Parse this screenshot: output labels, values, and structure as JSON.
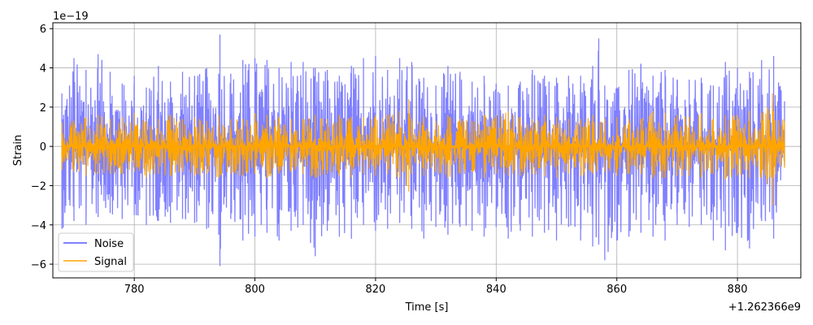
{
  "chart_data": {
    "type": "line",
    "title": "",
    "xlabel": "Time [s]",
    "ylabel": "Strain",
    "x_offset_label": "+1.262366e9",
    "y_scale_label": "1e−19",
    "xlim": [
      766.5,
      890.5
    ],
    "ylim": [
      -6.7,
      6.3
    ],
    "x_ticks": [
      780,
      800,
      820,
      840,
      860,
      880
    ],
    "x_tick_labels": [
      "780",
      "800",
      "820",
      "840",
      "860",
      "880"
    ],
    "y_ticks": [
      -6,
      -4,
      -2,
      0,
      2,
      4,
      6
    ],
    "y_tick_labels": [
      "−6",
      "−4",
      "−2",
      "0",
      "2",
      "4",
      "6"
    ],
    "grid": true,
    "legend_position": "lower-left",
    "series": [
      {
        "name": "Noise",
        "color": "#8080ff",
        "x": [
          768,
          770,
          772,
          774,
          776,
          778,
          780,
          782,
          784,
          786,
          788,
          790,
          792,
          794,
          794.2,
          796,
          798,
          800,
          802,
          804,
          806,
          808,
          810,
          812,
          814,
          816,
          818,
          820,
          822,
          824,
          826,
          828,
          830,
          832,
          834,
          836,
          838,
          840,
          842,
          844,
          846,
          848,
          850,
          852,
          854,
          856,
          857,
          858,
          860,
          862,
          864,
          866,
          868,
          870,
          872,
          874,
          876,
          878,
          880,
          882,
          884,
          886,
          887.8
        ],
        "y_max": [
          2.7,
          4.5,
          3.9,
          4.7,
          3.8,
          3.2,
          3.6,
          3.0,
          4.1,
          3.3,
          3.8,
          3.6,
          4.0,
          3.7,
          5.7,
          3.7,
          4.4,
          4.5,
          4.4,
          4.0,
          4.3,
          4.3,
          4.0,
          3.9,
          3.6,
          4.1,
          4.5,
          4.6,
          3.9,
          4.5,
          4.3,
          3.5,
          3.1,
          4.1,
          3.8,
          3.3,
          3.6,
          3.2,
          3.1,
          3.3,
          3.9,
          3.6,
          3.5,
          3.6,
          3.6,
          4.1,
          5.5,
          3.1,
          3.0,
          3.9,
          4.2,
          3.6,
          3.9,
          3.4,
          3.4,
          3.5,
          3.1,
          4.3,
          4.0,
          3.8,
          4.4,
          4.6,
          2.3
        ],
        "y_min": [
          -4.2,
          -3.8,
          -4.0,
          -3.6,
          -3.4,
          -3.7,
          -3.5,
          -4.0,
          -3.8,
          -3.9,
          -3.7,
          -3.9,
          -4.2,
          -4.5,
          -6.1,
          -3.7,
          -4.8,
          -4.6,
          -4.4,
          -4.8,
          -4.3,
          -4.0,
          -5.6,
          -4.3,
          -4.6,
          -4.7,
          -4.0,
          -4.3,
          -4.2,
          -3.9,
          -4.2,
          -4.7,
          -4.1,
          -4.5,
          -4.1,
          -4.3,
          -4.6,
          -4.1,
          -4.7,
          -4.3,
          -4.6,
          -4.4,
          -4.8,
          -4.1,
          -4.8,
          -5.1,
          -5.0,
          -5.8,
          -4.8,
          -4.6,
          -4.4,
          -4.6,
          -4.8,
          -4.0,
          -4.1,
          -4.0,
          -4.8,
          -5.3,
          -4.4,
          -5.2,
          -3.8,
          -4.7,
          -1.0
        ]
      },
      {
        "name": "Signal",
        "color": "#ffa500",
        "x": [
          768,
          770,
          772,
          774,
          776,
          778,
          780,
          782,
          784,
          786,
          788,
          790,
          792,
          794,
          796,
          798,
          800,
          802,
          804,
          806,
          808,
          810,
          812,
          814,
          816,
          818,
          820,
          822,
          824,
          825.5,
          826,
          828,
          830,
          832,
          834,
          836,
          838,
          840,
          842,
          844,
          846,
          848,
          850,
          852,
          854,
          856,
          858,
          860,
          862,
          864,
          866,
          868,
          870,
          872,
          874,
          876,
          878,
          880,
          882,
          884,
          885,
          885.8,
          886,
          887.8
        ],
        "y_max": [
          1.2,
          1.3,
          1.5,
          1.6,
          1.4,
          1.5,
          1.7,
          1.3,
          1.4,
          1.6,
          1.4,
          1.5,
          1.3,
          1.6,
          1.4,
          1.4,
          1.7,
          1.6,
          1.5,
          1.4,
          1.4,
          1.6,
          1.4,
          1.6,
          1.5,
          1.5,
          1.6,
          1.6,
          1.8,
          2.4,
          1.4,
          1.5,
          1.3,
          1.6,
          1.4,
          1.3,
          1.6,
          1.6,
          1.8,
          1.5,
          1.4,
          1.6,
          1.5,
          1.4,
          1.4,
          1.6,
          1.4,
          1.5,
          1.4,
          1.4,
          1.8,
          1.7,
          1.6,
          1.5,
          1.7,
          1.4,
          1.6,
          1.6,
          1.8,
          1.7,
          2.0,
          2.7,
          1.8,
          1.3
        ],
        "y_min": [
          -1.2,
          -1.3,
          -1.5,
          -1.4,
          -1.4,
          -1.4,
          -1.3,
          -1.6,
          -1.4,
          -1.5,
          -1.3,
          -1.5,
          -1.4,
          -1.6,
          -1.4,
          -1.5,
          -1.4,
          -1.6,
          -1.4,
          -1.3,
          -1.4,
          -1.6,
          -1.4,
          -1.5,
          -1.6,
          -1.4,
          -1.5,
          -1.4,
          -1.6,
          -2.3,
          -1.4,
          -1.5,
          -1.3,
          -1.6,
          -1.4,
          -1.3,
          -1.6,
          -1.4,
          -1.5,
          -1.5,
          -1.4,
          -1.5,
          -1.6,
          -1.4,
          -1.5,
          -1.4,
          -1.3,
          -1.5,
          -1.4,
          -1.4,
          -1.6,
          -1.6,
          -1.5,
          -1.5,
          -1.6,
          -1.4,
          -1.7,
          -1.5,
          -1.6,
          -1.6,
          -1.9,
          -3.0,
          -1.6,
          -1.1
        ]
      }
    ]
  }
}
